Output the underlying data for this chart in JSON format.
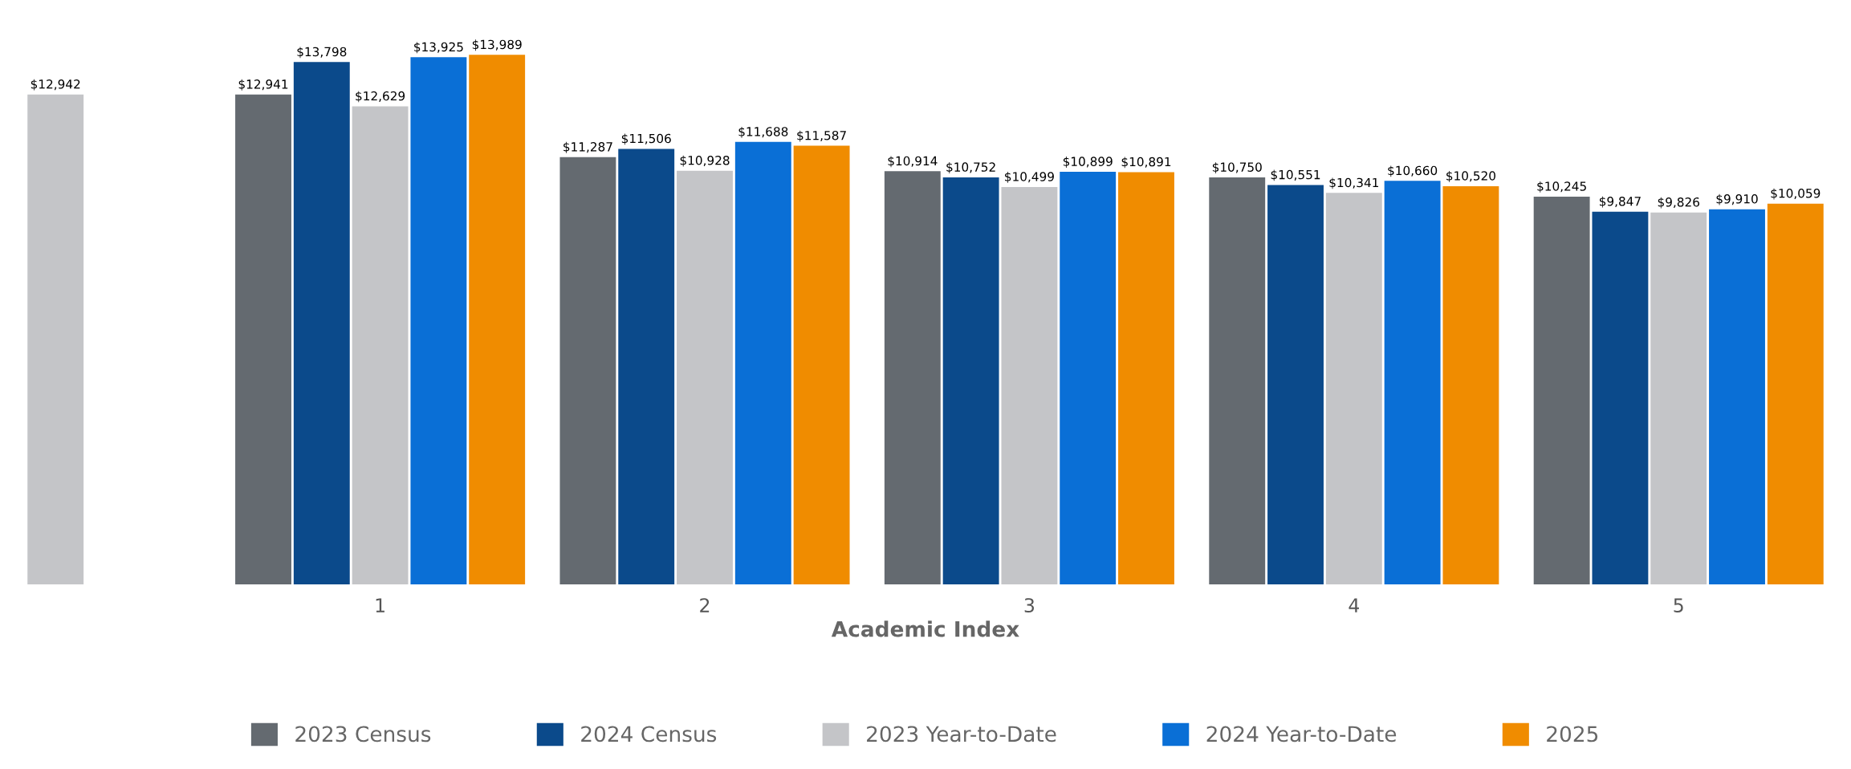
{
  "chart_data": {
    "type": "bar",
    "xlabel": "Academic Index",
    "categories": [
      null,
      "1",
      "2",
      "3",
      "4",
      "5"
    ],
    "series": [
      {
        "name": "2023 Census",
        "color": "#646a70",
        "values": [
          null,
          12941,
          11287,
          10914,
          10750,
          10245
        ],
        "value_labels": [
          null,
          "$12,941",
          "$11,287",
          "$10,914",
          "$10,750",
          "$10,245"
        ]
      },
      {
        "name": "2024 Census",
        "color": "#0b4a8b",
        "values": [
          null,
          13798,
          11506,
          10752,
          10551,
          9847
        ],
        "value_labels": [
          null,
          "$13,798",
          "$11,506",
          "$10,752",
          "$10,551",
          "$9,847"
        ]
      },
      {
        "name": "2023 Year-to-Date",
        "color": "#c4c5c8",
        "values": [
          12942,
          12629,
          10928,
          10499,
          10341,
          9826
        ],
        "value_labels": [
          "$12,942",
          "$12,629",
          "$10,928",
          "$10,499",
          "$10,341",
          "$9,826"
        ]
      },
      {
        "name": "2024 Year-to-Date",
        "color": "#0a6fd6",
        "values": [
          null,
          13925,
          11688,
          10899,
          10660,
          9910
        ],
        "value_labels": [
          null,
          "$13,925",
          "$11,688",
          "$10,899",
          "$10,660",
          "$9,910"
        ]
      },
      {
        "name": "2025",
        "color": "#f08c00",
        "values": [
          null,
          13989,
          11587,
          10891,
          10520,
          10059
        ],
        "value_labels": [
          null,
          "$13,989",
          "$11,587",
          "$10,891",
          "$10,520",
          "$10,059"
        ]
      }
    ],
    "legend": "bottom"
  }
}
